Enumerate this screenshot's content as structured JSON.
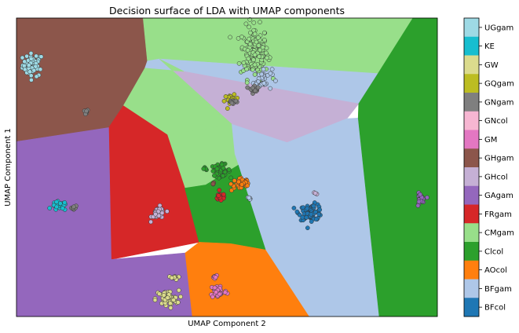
{
  "chart_data": {
    "type": "scatter",
    "title": "Decision surface of LDA with UMAP components",
    "xlabel": "UMAP Component 2",
    "ylabel": "UMAP Component 1",
    "xlim": [
      0,
      100
    ],
    "ylim": [
      0,
      100
    ],
    "ticks_shown": false,
    "colorbar": {
      "position": "right",
      "labels_top_to_bottom": [
        "UGgam",
        "KE",
        "GW",
        "GQgam",
        "GNgam",
        "GNcol",
        "GM",
        "GHgam",
        "GHcol",
        "GAgam",
        "FRgam",
        "CMgam",
        "Clcol",
        "AOcol",
        "BFgam",
        "BFcol"
      ]
    },
    "classes": [
      {
        "name": "UGgam",
        "color": "#9edae5"
      },
      {
        "name": "KE",
        "color": "#17becf"
      },
      {
        "name": "GW",
        "color": "#dbdb8d"
      },
      {
        "name": "GQgam",
        "color": "#bcbd22"
      },
      {
        "name": "GNgam",
        "color": "#7f7f7f"
      },
      {
        "name": "GNcol",
        "color": "#f7b6d2"
      },
      {
        "name": "GM",
        "color": "#e377c2"
      },
      {
        "name": "GHgam",
        "color": "#8c564b"
      },
      {
        "name": "GHcol",
        "color": "#c5b0d5"
      },
      {
        "name": "GAgam",
        "color": "#9467bd"
      },
      {
        "name": "FRgam",
        "color": "#d62728"
      },
      {
        "name": "CMgam",
        "color": "#98df8a"
      },
      {
        "name": "Clcol",
        "color": "#2ca02c"
      },
      {
        "name": "AOcol",
        "color": "#ff7f0e"
      },
      {
        "name": "BFgam",
        "color": "#aec7e8"
      },
      {
        "name": "BFcol",
        "color": "#1f77b4"
      }
    ],
    "decision_regions": [
      {
        "class": "GHgam",
        "polygon": [
          [
            0,
            100
          ],
          [
            30.1,
            100
          ],
          [
            31.1,
            85.6
          ],
          [
            30.5,
            83.2
          ],
          [
            25.4,
            70.6
          ],
          [
            21.9,
            63.3
          ],
          [
            0,
            58.6
          ]
        ]
      },
      {
        "class": "CMgam",
        "polygon": [
          [
            30.1,
            100
          ],
          [
            94.2,
            100
          ],
          [
            85.9,
            81.4
          ],
          [
            34.0,
            86.3
          ],
          [
            31.1,
            85.6
          ]
        ]
      },
      {
        "class": "BFgam",
        "polygon": [
          [
            31.1,
            85.6
          ],
          [
            34.0,
            86.3
          ],
          [
            85.9,
            81.4
          ],
          [
            81.3,
            71.3
          ],
          [
            75.4,
            72.8
          ],
          [
            39.8,
            82.1
          ],
          [
            30.5,
            83.2
          ]
        ]
      },
      {
        "class": "GHcol",
        "polygon": [
          [
            34.0,
            86.3
          ],
          [
            39.8,
            82.1
          ],
          [
            75.4,
            72.8
          ],
          [
            81.3,
            71.3
          ],
          [
            78.5,
            66.3
          ],
          [
            64.3,
            58.3
          ],
          [
            51.2,
            64.4
          ],
          [
            34.0,
            86.3
          ]
        ]
      },
      {
        "class": "CMgam",
        "polygon": [
          [
            30.5,
            83.2
          ],
          [
            39.8,
            82.1
          ],
          [
            34.0,
            86.3
          ],
          [
            51.2,
            64.4
          ],
          [
            51.9,
            54.5
          ],
          [
            52.8,
            50.8
          ],
          [
            45.0,
            44.1
          ],
          [
            40.0,
            43.0
          ],
          [
            35.8,
            60.9
          ],
          [
            25.4,
            70.6
          ]
        ]
      },
      {
        "class": "CMgam",
        "polygon": [
          [
            35.8,
            60.9
          ],
          [
            40.0,
            43.0
          ],
          [
            44.5,
            44.1
          ],
          [
            46.4,
            45.0
          ],
          [
            48.8,
            46.7
          ],
          [
            52.8,
            50.8
          ],
          [
            51.9,
            54.5
          ],
          [
            51.2,
            64.4
          ]
        ]
      },
      {
        "class": "FRgam",
        "polygon": [
          [
            21.9,
            63.3
          ],
          [
            25.4,
            70.6
          ],
          [
            35.8,
            60.9
          ],
          [
            40.0,
            43.0
          ],
          [
            43.4,
            24.9
          ],
          [
            22.5,
            19.1
          ],
          [
            21.9,
            63.3
          ]
        ]
      },
      {
        "class": "GAgam",
        "polygon": [
          [
            0,
            58.6
          ],
          [
            21.9,
            63.3
          ],
          [
            22.5,
            19.1
          ],
          [
            40.1,
            21.3
          ],
          [
            41.8,
            0
          ],
          [
            0,
            0
          ]
        ]
      },
      {
        "class": "Clcol",
        "polygon": [
          [
            40.0,
            43.0
          ],
          [
            45.0,
            44.1
          ],
          [
            52.8,
            50.8
          ],
          [
            59.3,
            22.3
          ],
          [
            50.9,
            24.4
          ],
          [
            43.4,
            24.9
          ]
        ]
      },
      {
        "class": "AOcol",
        "polygon": [
          [
            40.1,
            21.3
          ],
          [
            43.4,
            24.9
          ],
          [
            50.9,
            24.4
          ],
          [
            59.3,
            22.3
          ],
          [
            69.6,
            0
          ],
          [
            41.8,
            0
          ]
        ]
      },
      {
        "class": "BFgam",
        "polygon": [
          [
            51.9,
            54.5
          ],
          [
            52.8,
            50.8
          ],
          [
            59.3,
            22.3
          ],
          [
            69.6,
            0
          ],
          [
            86.2,
            0
          ],
          [
            81.2,
            66.5
          ],
          [
            78.5,
            66.3
          ],
          [
            64.3,
            58.3
          ],
          [
            51.2,
            64.4
          ]
        ]
      },
      {
        "class": "Clcol",
        "polygon": [
          [
            85.9,
            81.4
          ],
          [
            94.2,
            100
          ],
          [
            100,
            100
          ],
          [
            100,
            0
          ],
          [
            86.2,
            0
          ],
          [
            81.2,
            66.5
          ],
          [
            81.3,
            71.3
          ]
        ]
      }
    ],
    "clusters": [
      {
        "class": "UGgam",
        "center": [
          3.9,
          84.3
        ],
        "spread": [
          2.2,
          3.5
        ],
        "n": 55
      },
      {
        "class": "GNgam",
        "center": [
          16.4,
          68.5
        ],
        "spread": [
          0.6,
          0.8
        ],
        "n": 6
      },
      {
        "class": "CMgam",
        "center": [
          56.5,
          88.5
        ],
        "spread": [
          3.0,
          8.0
        ],
        "n": 150
      },
      {
        "class": "BFgam",
        "center": [
          58.5,
          79.5
        ],
        "spread": [
          2.0,
          3.5
        ],
        "n": 30
      },
      {
        "class": "GNgam",
        "center": [
          56.5,
          76.5
        ],
        "spread": [
          1.0,
          1.5
        ],
        "n": 12
      },
      {
        "class": "GQgam",
        "center": [
          51.0,
          72.5
        ],
        "spread": [
          1.5,
          1.5
        ],
        "n": 15
      },
      {
        "class": "GNgam",
        "center": [
          51.5,
          72.0
        ],
        "spread": [
          1.2,
          1.0
        ],
        "n": 10
      },
      {
        "class": "Clcol",
        "center": [
          48.5,
          49.0
        ],
        "spread": [
          2.0,
          1.8
        ],
        "n": 45
      },
      {
        "class": "AOcol",
        "center": [
          53.5,
          44.5
        ],
        "spread": [
          2.2,
          2.2
        ],
        "n": 40
      },
      {
        "class": "FRgam",
        "center": [
          48.5,
          40.0
        ],
        "spread": [
          1.3,
          1.3
        ],
        "n": 16
      },
      {
        "class": "Clcol",
        "center": [
          44.8,
          49.5
        ],
        "spread": [
          0.7,
          0.4
        ],
        "n": 5
      },
      {
        "class": "GHgam",
        "center": [
          46.5,
          44.5
        ],
        "spread": [
          0.4,
          0.4
        ],
        "n": 3
      },
      {
        "class": "BFgam",
        "center": [
          55.5,
          39.5
        ],
        "spread": [
          1.0,
          0.5
        ],
        "n": 5
      },
      {
        "class": "KE",
        "center": [
          10.2,
          37.0
        ],
        "spread": [
          1.6,
          1.4
        ],
        "n": 30
      },
      {
        "class": "GNgam",
        "center": [
          13.5,
          36.5
        ],
        "spread": [
          0.8,
          0.7
        ],
        "n": 8
      },
      {
        "class": "GHcol",
        "center": [
          33.8,
          34.5
        ],
        "spread": [
          1.5,
          2.0
        ],
        "n": 30
      },
      {
        "class": "BFcol",
        "center": [
          70.0,
          35.0
        ],
        "spread": [
          2.6,
          2.4
        ],
        "n": 70
      },
      {
        "class": "GHcol",
        "center": [
          70.7,
          41.5
        ],
        "spread": [
          0.5,
          0.5
        ],
        "n": 3
      },
      {
        "class": "GAgam",
        "center": [
          96.0,
          39.0
        ],
        "spread": [
          0.9,
          2.0
        ],
        "n": 22
      },
      {
        "class": "GW",
        "center": [
          35.8,
          6.0
        ],
        "spread": [
          2.5,
          2.5
        ],
        "n": 45
      },
      {
        "class": "GW",
        "center": [
          37.5,
          13.0
        ],
        "spread": [
          1.2,
          0.6
        ],
        "n": 10
      },
      {
        "class": "GM",
        "center": [
          48.0,
          8.5
        ],
        "spread": [
          1.8,
          2.2
        ],
        "n": 45
      },
      {
        "class": "GM",
        "center": [
          47.2,
          13.5
        ],
        "spread": [
          0.6,
          0.5
        ],
        "n": 6
      }
    ]
  }
}
